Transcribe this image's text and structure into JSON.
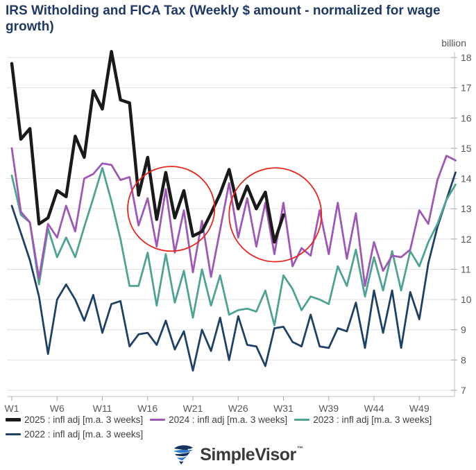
{
  "title": "IRS Witholding and FICA Tax (Weekly $ amount - normalized for wage growth)",
  "unit_label": "billion",
  "legend": {
    "items": [
      {
        "label": "2025 : infl adj [m.a. 3 weeks]",
        "color": "#1a1a1a",
        "thick": 5
      },
      {
        "label": "2024 : infl adj [m.a. 3 weeks]",
        "color": "#9e58b5",
        "thick": 3
      },
      {
        "label": "2023 : infl adj [m.a. 3 weeks]",
        "color": "#4fa392",
        "thick": 3
      },
      {
        "label": "2022 : infl adj [m.a. 3 weeks]",
        "color": "#1f4164",
        "thick": 3
      }
    ]
  },
  "logo": {
    "text": "SimpleVisor",
    "tm": "™"
  },
  "colors": {
    "title": "#1F3864",
    "grid": "#e2e2e2",
    "axis": "#c0c0c0",
    "tick": "#a6a6a6",
    "axis_text": "#595959",
    "annotation": "#e8251c"
  },
  "chart_data": {
    "type": "line",
    "title": "IRS Witholding and FICA Tax (Weekly $ amount - normalized for wage growth)",
    "y_unit": "billion",
    "ylim": [
      7,
      18
    ],
    "y_ticks": [
      7,
      8,
      9,
      10,
      11,
      12,
      13,
      14,
      15,
      16,
      17,
      18
    ],
    "n_slots": 50,
    "x_tick_labels": [
      "W1",
      "W6",
      "W11",
      "W16",
      "W21",
      "W26",
      "W31",
      "W39",
      "W44",
      "W49"
    ],
    "x_tick_slots": [
      1,
      6,
      11,
      16,
      21,
      26,
      31,
      36,
      41,
      46
    ],
    "grid": "horizontal-only",
    "legend_position": "bottom",
    "series": [
      {
        "name": "2022 : infl adj [m.a. 3 weeks]",
        "color": "#1f4164",
        "width": 2.8,
        "values": [
          13.1,
          12.2,
          11.3,
          10.1,
          8.2,
          10.0,
          10.5,
          10.0,
          9.3,
          10.15,
          8.9,
          9.85,
          9.95,
          8.45,
          8.85,
          8.9,
          8.5,
          9.3,
          8.35,
          8.95,
          7.65,
          9.0,
          8.3,
          9.4,
          8.0,
          9.45,
          8.5,
          8.45,
          7.8,
          9.05,
          9.1,
          8.6,
          8.45,
          9.5,
          8.45,
          8.4,
          9.05,
          8.95,
          9.9,
          8.4,
          10.3,
          8.9,
          10.3,
          8.4,
          10.25,
          9.35,
          11.2,
          12.4,
          13.3,
          14.2
        ]
      },
      {
        "name": "2023 : infl adj [m.a. 3 weeks]",
        "color": "#4fa392",
        "width": 2.8,
        "values": [
          14.1,
          12.8,
          12.55,
          10.5,
          12.35,
          11.4,
          12.05,
          11.4,
          12.4,
          13.35,
          14.35,
          13.25,
          12.0,
          10.45,
          10.45,
          11.55,
          9.8,
          11.5,
          9.9,
          10.95,
          9.4,
          11.0,
          9.8,
          10.8,
          9.5,
          9.65,
          9.7,
          9.6,
          10.3,
          9.15,
          10.8,
          10.35,
          9.65,
          10.1,
          10.0,
          9.85,
          11.1,
          10.45,
          11.65,
          10.1,
          11.4,
          10.3,
          11.6,
          10.3,
          11.6,
          11.1,
          11.9,
          12.5,
          13.3,
          13.8
        ]
      },
      {
        "name": "2024 : infl adj [m.a. 3 weeks]",
        "color": "#9e58b5",
        "width": 2.8,
        "values": [
          15.0,
          12.9,
          12.55,
          10.7,
          12.5,
          12.05,
          13.1,
          12.25,
          14.0,
          14.15,
          14.5,
          14.45,
          13.95,
          14.05,
          12.45,
          13.35,
          11.75,
          13.65,
          11.55,
          12.95,
          10.9,
          12.6,
          10.75,
          12.3,
          13.85,
          12.05,
          13.35,
          11.75,
          13.2,
          11.5,
          13.2,
          11.1,
          11.7,
          11.45,
          12.95,
          11.5,
          13.2,
          11.35,
          12.85,
          10.45,
          11.9,
          10.95,
          11.45,
          11.4,
          11.65,
          12.95,
          12.5,
          13.95,
          14.75,
          14.6
        ]
      },
      {
        "name": "2025 : infl adj [m.a. 3 weeks]",
        "color": "#1a1a1a",
        "width": 4.5,
        "values": [
          17.8,
          15.3,
          15.65,
          12.5,
          12.7,
          13.6,
          13.4,
          15.4,
          14.7,
          16.9,
          16.3,
          18.2,
          16.6,
          16.5,
          13.45,
          14.7,
          12.65,
          14.2,
          12.7,
          13.6,
          12.1,
          12.25,
          12.85,
          13.5,
          14.3,
          13.0,
          13.75,
          13.0,
          13.55,
          11.9,
          12.8
        ]
      }
    ],
    "annotations": [
      {
        "type": "ellipse",
        "color": "#e8251c",
        "cx_slot": 18.6,
        "cy_value": 13.0,
        "rx_slots": 4.8,
        "ry_values": 1.4
      },
      {
        "type": "ellipse",
        "color": "#e8251c",
        "cx_slot": 30.1,
        "cy_value": 12.8,
        "rx_slots": 5.1,
        "ry_values": 1.55
      }
    ]
  }
}
